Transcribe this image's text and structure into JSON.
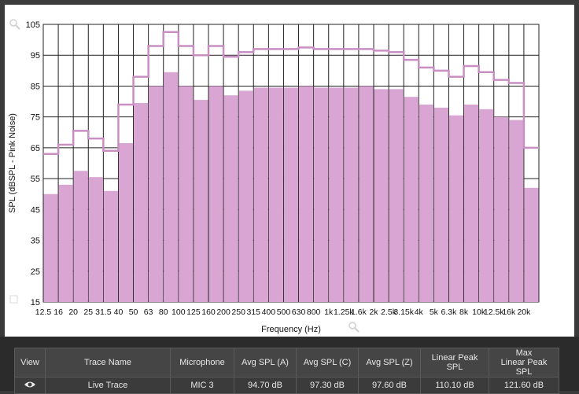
{
  "chart_data": {
    "type": "bar",
    "xlabel": "Frequency (Hz)",
    "ylabel": "SPL (dBSPL - Pink Noise)",
    "ylim": [
      15,
      105
    ],
    "yticks": [
      15,
      25,
      35,
      45,
      55,
      65,
      75,
      85,
      95,
      105
    ],
    "categories": [
      "12.5",
      "16",
      "20",
      "25",
      "31.5",
      "40",
      "50",
      "63",
      "80",
      "100",
      "125",
      "160",
      "200",
      "250",
      "315",
      "400",
      "500",
      "630",
      "800",
      "1k",
      "1.25k",
      "1.6k",
      "2k",
      "2.5k",
      "3.15k",
      "4k",
      "5k",
      "6.3k",
      "8k",
      "10k",
      "12.5k",
      "16k",
      "20k"
    ],
    "values": [
      50,
      53,
      57.5,
      55.5,
      51,
      66.5,
      79.5,
      85,
      89.5,
      85,
      80.5,
      85,
      82,
      83.5,
      84.5,
      84.5,
      84.5,
      85,
      84.5,
      84.5,
      84.5,
      85,
      84,
      84,
      81.5,
      79,
      78,
      75.5,
      79,
      77.5,
      75,
      74,
      52
    ],
    "peak_values": [
      63,
      66,
      70.5,
      68,
      64,
      79,
      88,
      98,
      102.5,
      98,
      95,
      98,
      94.5,
      96,
      97,
      97,
      97,
      97.5,
      97,
      97,
      97,
      97,
      96.5,
      96,
      93.5,
      91,
      90,
      88,
      91.5,
      89.5,
      87,
      86,
      65
    ],
    "bar_color": "#d9a5d3",
    "peak_color": "#c98fc3",
    "grid": true
  },
  "table": {
    "headers": [
      "View",
      "Trace Name",
      "Microphone",
      "Avg SPL (A)",
      "Avg SPL (C)",
      "Avg SPL (Z)",
      "Linear Peak SPL",
      "Max\nLinear Peak SPL"
    ],
    "header_max_line1": "Max",
    "header_max_line2": "Linear Peak SPL",
    "row": {
      "view_icon": "eye-icon",
      "trace_name": "Live Trace",
      "microphone": "MIC 3",
      "avg_a": "94.70 dB",
      "avg_c": "97.30 dB",
      "avg_z": "97.60 dB",
      "linear_peak": "110.10 dB",
      "max_linear_peak": "121.60 dB"
    }
  }
}
